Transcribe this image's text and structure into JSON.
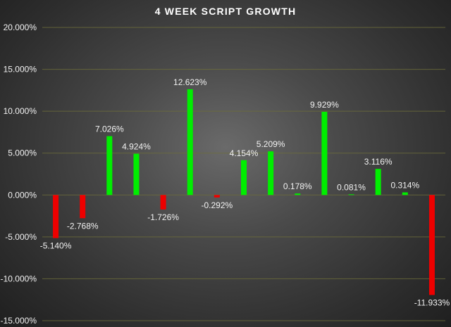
{
  "chart_data": {
    "type": "bar",
    "title": "4 WEEK SCRIPT GROWTH",
    "xlabel": "",
    "ylabel": "",
    "ylim": [
      -15,
      20
    ],
    "y_ticks": [
      20,
      15,
      10,
      5,
      0,
      -5,
      -10,
      -15
    ],
    "y_tick_labels": [
      "20.000%",
      "15.000%",
      "10.000%",
      "5.000%",
      "0.000%",
      "-5.000%",
      "-10.000%",
      "-15.000%"
    ],
    "grid": true,
    "legend": "none",
    "values": [
      -5.14,
      -2.768,
      7.026,
      4.924,
      -1.726,
      12.623,
      -0.292,
      4.154,
      5.209,
      0.178,
      9.929,
      0.081,
      3.116,
      0.314,
      -11.933
    ],
    "data_labels": [
      "-5.140%",
      "-2.768%",
      "7.026%",
      "4.924%",
      "-1.726%",
      "12.623%",
      "-0.292%",
      "4.154%",
      "5.209%",
      "0.178%",
      "9.929%",
      "0.081%",
      "3.116%",
      "0.314%",
      "-11.933%"
    ],
    "colors": {
      "positive": "#00ee00",
      "negative": "#ee0000",
      "gridline": "#6e6e3a",
      "text": "#f2f2f2"
    }
  }
}
